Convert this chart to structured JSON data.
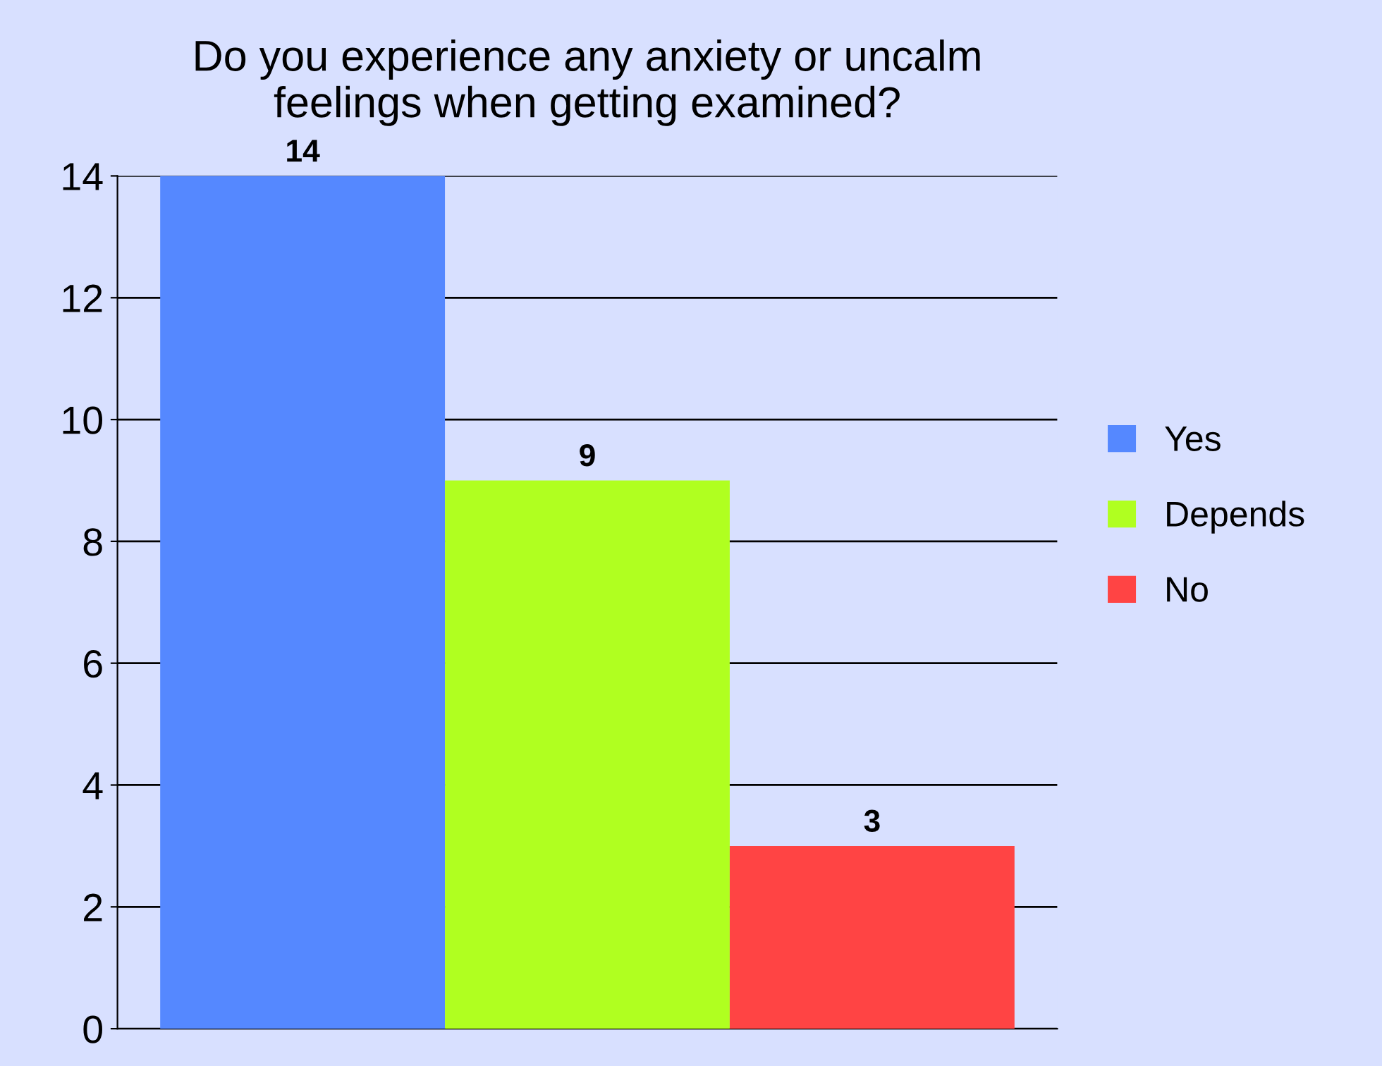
{
  "chart_data": {
    "type": "bar",
    "title": "Do you experience any anxiety or uncalm\nfeelings when getting examined?",
    "categories": [
      null
    ],
    "series": [
      {
        "name": "Yes",
        "color": "#5588ff",
        "values": [
          14
        ]
      },
      {
        "name": "Depends",
        "color": "#b0ff20",
        "values": [
          9
        ]
      },
      {
        "name": "No",
        "color": "#ff4444",
        "values": [
          3
        ]
      }
    ],
    "ylim": [
      0,
      14
    ],
    "yticks": [
      0,
      2,
      4,
      6,
      8,
      10,
      12,
      14
    ],
    "grid": "y",
    "legend": "right",
    "data_labels": true,
    "tick_labels": "y"
  }
}
